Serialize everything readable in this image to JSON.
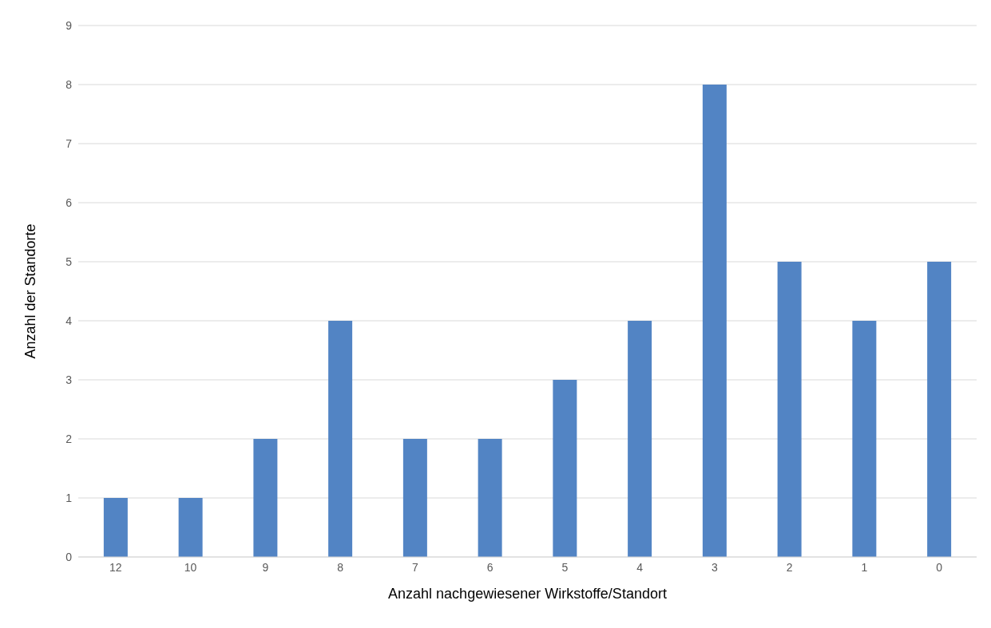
{
  "chart_data": {
    "type": "bar",
    "xlabel": "Anzahl nachgewiesener Wirkstoffe/Standort",
    "ylabel": "Anzahl der Standorte",
    "categories": [
      "12",
      "10",
      "9",
      "8",
      "7",
      "6",
      "5",
      "4",
      "3",
      "2",
      "1",
      "0"
    ],
    "values": [
      1,
      1,
      2,
      4,
      2,
      2,
      3,
      4,
      8,
      5,
      4,
      5
    ],
    "color": "#5284c4",
    "ylim": [
      0,
      9
    ],
    "yticks": [
      0,
      1,
      2,
      3,
      4,
      5,
      6,
      7,
      8,
      9
    ],
    "grid": "y"
  }
}
